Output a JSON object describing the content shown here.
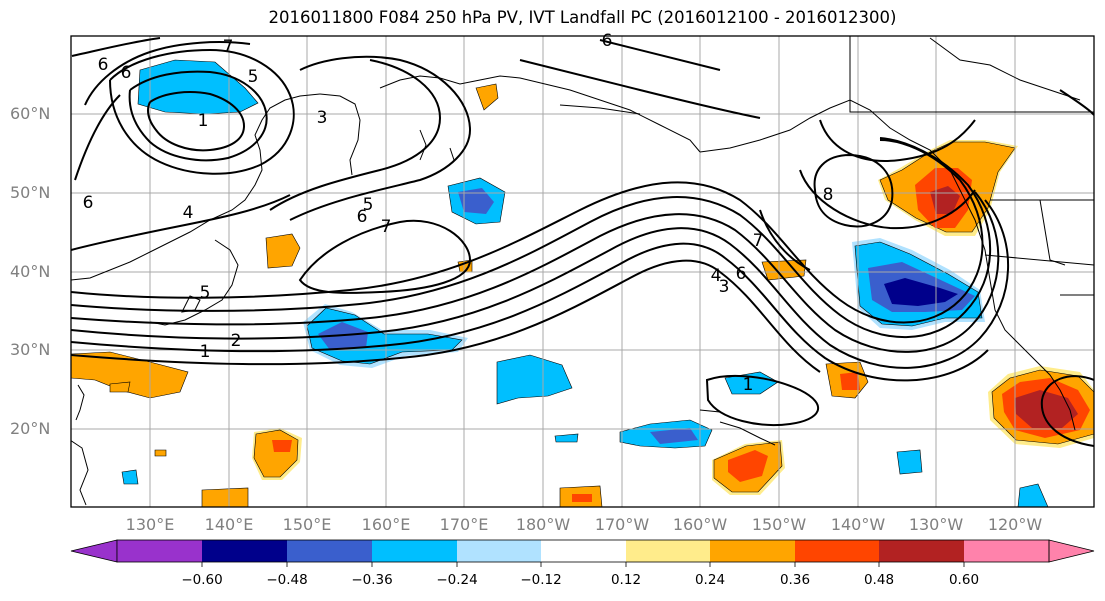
{
  "title": "2016011800 F084 250 hPa PV, IVT Landfall PC (2016012100 - 2016012300)",
  "lat_labels": [
    "60°N",
    "50°N",
    "40°N",
    "30°N",
    "20°N"
  ],
  "lon_labels": [
    "130°E",
    "140°E",
    "150°E",
    "160°E",
    "170°E",
    "180°W",
    "170°W",
    "160°W",
    "150°W",
    "140°W",
    "130°W",
    "120°W"
  ],
  "contour_labels": [
    "7",
    "6",
    "6",
    "5",
    "1",
    "3",
    "5",
    "6",
    "7",
    "4",
    "6",
    "5",
    "2",
    "1",
    "1",
    "7",
    "6",
    "4",
    "3",
    "8",
    "6"
  ],
  "colorbar": {
    "ticks": [
      "−0.60",
      "−0.48",
      "−0.36",
      "−0.24",
      "−0.12",
      "0.12",
      "0.24",
      "0.36",
      "0.48",
      "0.60"
    ],
    "colors": [
      "#9932CC",
      "#00008B",
      "#3A5FCD",
      "#00BFFF",
      "#B0E2FF",
      "#FFFFFF",
      "#FFEC8B",
      "#FFA500",
      "#FF4500",
      "#B22222",
      "#FF82AB"
    ]
  }
}
